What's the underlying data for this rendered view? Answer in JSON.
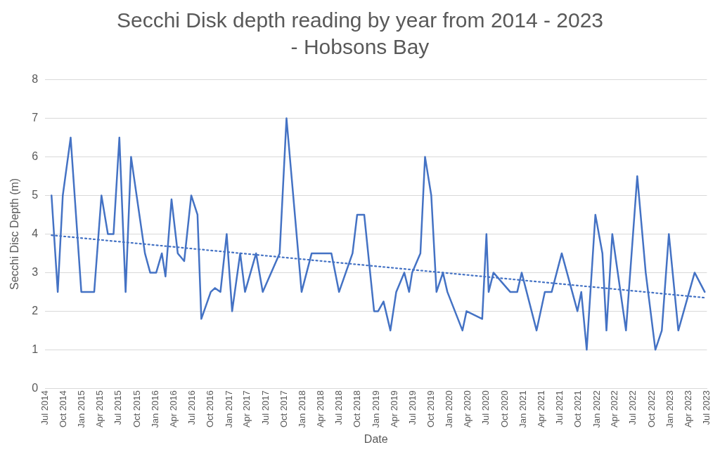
{
  "chart_data": {
    "type": "line",
    "title": "Secchi Disk depth reading by year from 2014 - 2023 - Hobsons Bay",
    "xlabel": "Date",
    "ylabel": "Secchi Disc Depth (m)",
    "x": [
      "2014-08-02",
      "2014-09-02",
      "2014-09-27",
      "2014-11-05",
      "2014-12-28",
      "2015-03-02",
      "2015-04-07",
      "2015-05-09",
      "2015-06-06",
      "2015-07-05",
      "2015-08-05",
      "2015-09-01",
      "2015-11-09",
      "2015-12-05",
      "2016-01-04",
      "2016-02-01",
      "2016-02-19",
      "2016-03-20",
      "2016-04-20",
      "2016-05-22",
      "2016-06-26",
      "2016-07-27",
      "2016-08-15",
      "2016-10-01",
      "2016-10-22",
      "2016-11-18",
      "2016-12-19",
      "2017-01-15",
      "2017-02-24",
      "2017-03-20",
      "2017-05-14",
      "2017-06-16",
      "2017-09-08",
      "2017-10-12",
      "2017-12-26",
      "2018-02-14",
      "2018-05-23",
      "2018-06-30",
      "2018-09-05",
      "2018-09-28",
      "2018-11-02",
      "2018-12-21",
      "2019-01-10",
      "2019-02-06",
      "2019-03-12",
      "2019-04-10",
      "2019-05-20",
      "2019-06-13",
      "2019-06-28",
      "2019-08-08",
      "2019-08-31",
      "2019-10-01",
      "2019-10-27",
      "2019-11-28",
      "2019-12-20",
      "2020-03-04",
      "2020-03-24",
      "2020-06-10",
      "2020-07-01",
      "2020-07-12",
      "2020-08-05",
      "2020-10-27",
      "2020-12-01",
      "2020-12-23",
      "2021-03-07",
      "2021-04-17",
      "2021-05-21",
      "2021-07-10",
      "2021-09-26",
      "2021-10-15",
      "2021-11-11",
      "2021-12-24",
      "2022-01-28",
      "2022-02-17",
      "2022-03-18",
      "2022-05-25",
      "2022-07-20",
      "2022-08-31",
      "2022-10-18",
      "2022-11-19",
      "2022-12-24",
      "2023-02-09",
      "2023-03-08",
      "2023-05-01",
      "2023-06-20"
    ],
    "series": [
      {
        "color": "#4472c4",
        "line_style": "solid",
        "values": [
          5,
          2.5,
          5,
          6.5,
          2.5,
          2.5,
          5,
          4,
          4,
          6.5,
          2.5,
          6,
          3.5,
          3,
          3,
          3.5,
          2.9,
          4.9,
          3.5,
          3.3,
          5,
          4.5,
          1.8,
          2.5,
          2.6,
          2.5,
          4,
          2,
          3.5,
          2.5,
          3.5,
          2.5,
          3.5,
          7,
          2.5,
          3.5,
          3.5,
          2.5,
          3.5,
          4.5,
          4.5,
          2,
          2,
          2.25,
          1.5,
          2.5,
          3,
          2.5,
          3,
          3.5,
          6,
          5,
          2.5,
          3,
          2.5,
          1.5,
          2,
          1.8,
          4,
          2.5,
          3,
          2.5,
          2.5,
          3,
          1.5,
          2.5,
          2.5,
          3.5,
          2,
          2.5,
          1,
          4.5,
          3.5,
          1.5,
          4,
          1.5,
          5.5,
          3,
          1,
          1.5,
          4,
          1.5,
          2,
          3,
          2.5
        ]
      },
      {
        "type": "line",
        "color": "#4472c4",
        "line_style": "dotted",
        "x": [
          "2014-08-02",
          "2023-06-20"
        ],
        "values": [
          3.97,
          2.35
        ]
      }
    ],
    "xlim": [
      "2014-07",
      "2023-07"
    ],
    "xticks": [
      {
        "value": "2014-07",
        "label": "Jul 2014"
      },
      {
        "value": "2014-10",
        "label": "Oct 2014"
      },
      {
        "value": "2015-01",
        "label": "Jan 2015"
      },
      {
        "value": "2015-04",
        "label": "Apr 2015"
      },
      {
        "value": "2015-07",
        "label": "Jul 2015"
      },
      {
        "value": "2015-10",
        "label": "Oct 2015"
      },
      {
        "value": "2016-01",
        "label": "Jan 2016"
      },
      {
        "value": "2016-04",
        "label": "Apr 2016"
      },
      {
        "value": "2016-07",
        "label": "Jul 2016"
      },
      {
        "value": "2016-10",
        "label": "Oct 2016"
      },
      {
        "value": "2017-01",
        "label": "Jan 2017"
      },
      {
        "value": "2017-04",
        "label": "Apr 2017"
      },
      {
        "value": "2017-07",
        "label": "Jul 2017"
      },
      {
        "value": "2017-10",
        "label": "Oct 2017"
      },
      {
        "value": "2018-01",
        "label": "Jan 2018"
      },
      {
        "value": "2018-04",
        "label": "Apr 2018"
      },
      {
        "value": "2018-07",
        "label": "Jul 2018"
      },
      {
        "value": "2018-10",
        "label": "Oct 2018"
      },
      {
        "value": "2019-01",
        "label": "Jan 2019"
      },
      {
        "value": "2019-04",
        "label": "Apr 2019"
      },
      {
        "value": "2019-07",
        "label": "Jul 2019"
      },
      {
        "value": "2019-10",
        "label": "Oct 2019"
      },
      {
        "value": "2020-01",
        "label": "Jan 2020"
      },
      {
        "value": "2020-04",
        "label": "Apr 2020"
      },
      {
        "value": "2020-07",
        "label": "Jul 2020"
      },
      {
        "value": "2020-10",
        "label": "Oct 2020"
      },
      {
        "value": "2021-01",
        "label": "Jan 2021"
      },
      {
        "value": "2021-04",
        "label": "Apr 2021"
      },
      {
        "value": "2021-07",
        "label": "Jul 2021"
      },
      {
        "value": "2021-10",
        "label": "Oct 2021"
      },
      {
        "value": "2022-01",
        "label": "Jan 2022"
      },
      {
        "value": "2022-04",
        "label": "Apr 2022"
      },
      {
        "value": "2022-07",
        "label": "Jul 2022"
      },
      {
        "value": "2022-10",
        "label": "Oct 2022"
      },
      {
        "value": "2023-01",
        "label": "Jan 2023"
      },
      {
        "value": "2023-04",
        "label": "Apr 2023"
      },
      {
        "value": "2023-07",
        "label": "Jul 2023"
      }
    ],
    "ylim": [
      0,
      8
    ],
    "yticks": [
      0,
      1,
      2,
      3,
      4,
      5,
      6,
      7,
      8
    ],
    "grid": "y",
    "legend": false,
    "marker": "none"
  }
}
